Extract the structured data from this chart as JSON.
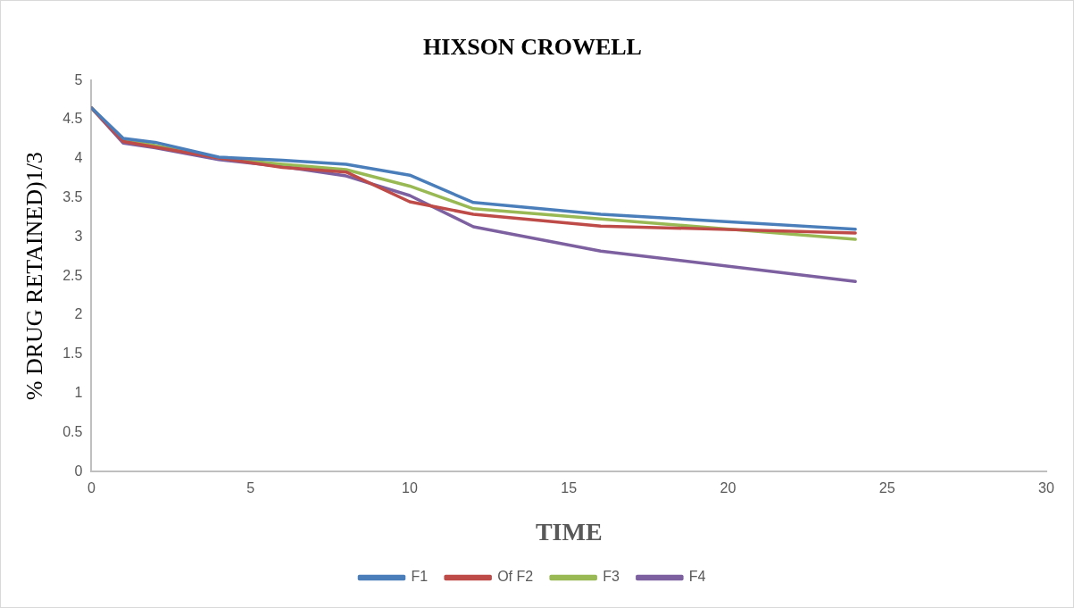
{
  "chart_data": {
    "type": "line",
    "title": "HIXSON CROWELL",
    "xlabel": "TIME",
    "ylabel": "% DRUG RETAINED)1/3",
    "x": [
      0,
      1,
      2,
      4,
      6,
      8,
      10,
      12,
      16,
      24
    ],
    "series": [
      {
        "name": "F1",
        "color": "#4a7ebb",
        "values": [
          4.65,
          4.26,
          4.21,
          4.02,
          3.98,
          3.93,
          3.79,
          3.44,
          3.29,
          3.1
        ]
      },
      {
        "name": "Of F2",
        "color": "#be4b48",
        "values": [
          4.65,
          4.22,
          4.15,
          4.01,
          3.89,
          3.83,
          3.45,
          3.29,
          3.14,
          3.05
        ]
      },
      {
        "name": "F3",
        "color": "#98b954",
        "values": [
          4.65,
          4.24,
          4.17,
          4.01,
          3.93,
          3.86,
          3.65,
          3.36,
          3.23,
          2.97
        ]
      },
      {
        "name": "F4",
        "color": "#7d60a0",
        "values": [
          4.65,
          4.2,
          4.14,
          3.99,
          3.9,
          3.78,
          3.53,
          3.13,
          2.82,
          2.43
        ]
      }
    ],
    "xlim": [
      0,
      30
    ],
    "xticks": [
      0,
      5,
      10,
      15,
      20,
      25,
      30
    ],
    "ylim": [
      0,
      5
    ],
    "yticks": [
      0,
      0.5,
      1,
      1.5,
      2,
      2.5,
      3,
      3.5,
      4,
      4.5,
      5
    ],
    "grid": false,
    "legend": "bottom",
    "marker": "none",
    "line_style": "solid"
  }
}
